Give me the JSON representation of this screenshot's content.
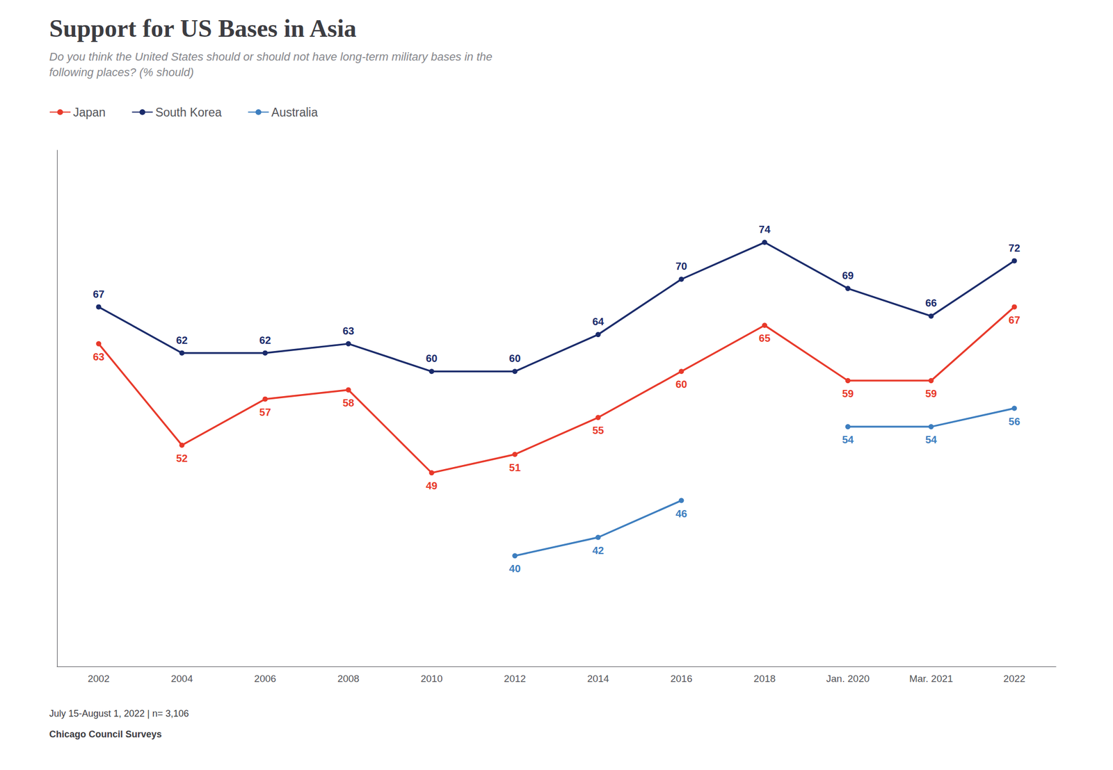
{
  "chart_data": {
    "type": "line",
    "title": "Support for US Bases in Asia",
    "subtitle": "Do you think the United States should or should not have long-term military bases in the\nfollowing places? (% should)",
    "footnote": "July 15-August 1, 2022 | n= 3,106",
    "source": "Chicago Council Surveys",
    "categories": [
      "2002",
      "2004",
      "2006",
      "2008",
      "2010",
      "2012",
      "2014",
      "2016",
      "2018",
      "Jan. 2020",
      "Mar. 2021",
      "2022"
    ],
    "series": [
      {
        "name": "Japan",
        "color": "#e8392a",
        "values": [
          63,
          52,
          57,
          58,
          49,
          51,
          55,
          60,
          65,
          59,
          59,
          67
        ]
      },
      {
        "name": "South Korea",
        "color": "#1a2b6b",
        "values": [
          67,
          62,
          62,
          63,
          60,
          60,
          64,
          70,
          74,
          69,
          66,
          72
        ]
      },
      {
        "name": "Australia",
        "color": "#3d7ebf",
        "values": [
          null,
          null,
          null,
          null,
          null,
          40,
          42,
          46,
          null,
          54,
          54,
          56
        ]
      }
    ],
    "ylim": [
      28,
      84
    ],
    "tick_labels": "x",
    "grid": false,
    "legend": "upper left",
    "data_labels": true,
    "marker": "circle"
  }
}
